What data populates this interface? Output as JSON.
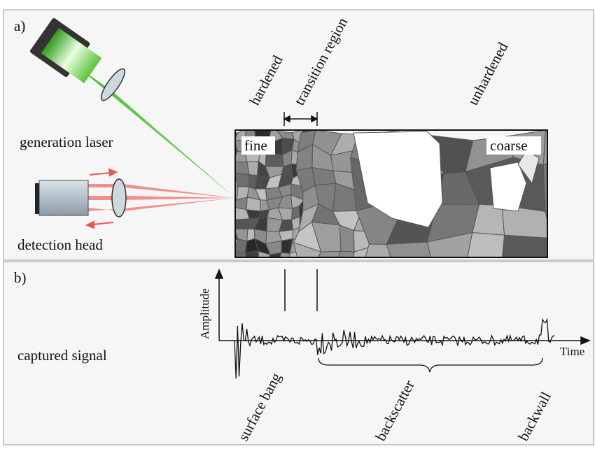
{
  "panel_a": {
    "label": "a)",
    "zones": [
      "hardened",
      "transition region",
      "unhardened"
    ],
    "generation": "generation laser",
    "detection": "detection head",
    "fine": "fine",
    "coarse": "coarse"
  },
  "panel_b": {
    "label": "b)",
    "title": "captured signal",
    "y_axis": "Amplitude",
    "x_axis": "Time",
    "events": [
      "surface bang",
      "backscatter",
      "backwall"
    ]
  }
}
